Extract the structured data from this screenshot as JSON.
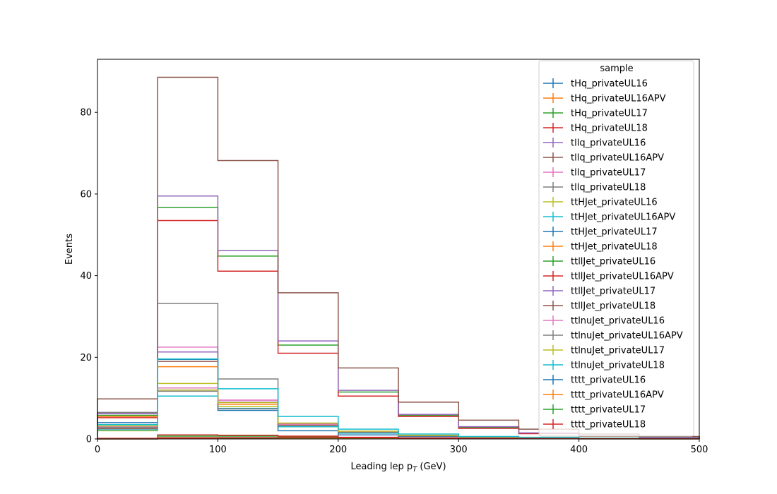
{
  "chart_data": {
    "type": "histogram-step",
    "xlabel": "Leading lep p",
    "xlabel_sub": "T",
    "xlabel_unit": " (GeV)",
    "ylabel": "Events",
    "xlim": [
      0,
      500
    ],
    "ylim": [
      0,
      93
    ],
    "x_ticks": [
      0,
      100,
      200,
      300,
      400,
      500
    ],
    "y_ticks": [
      0,
      20,
      40,
      60,
      80
    ],
    "bin_edges": [
      0,
      50,
      100,
      150,
      200,
      250,
      300,
      350,
      400,
      450,
      500
    ],
    "legend_title": "sample",
    "legend_placement": "upper-right",
    "series": [
      {
        "name": "tHq_privateUL16",
        "color": "#1f77b4",
        "values": [
          0.05,
          0.35,
          0.35,
          0.25,
          0.15,
          0.1,
          0.05,
          0.05,
          0.02,
          0.02
        ]
      },
      {
        "name": "tHq_privateUL16APV",
        "color": "#ff7f0e",
        "values": [
          0.05,
          0.3,
          0.3,
          0.2,
          0.15,
          0.1,
          0.05,
          0.04,
          0.02,
          0.02
        ]
      },
      {
        "name": "tHq_privateUL17",
        "color": "#2ca02c",
        "values": [
          0.1,
          0.7,
          0.7,
          0.5,
          0.3,
          0.2,
          0.1,
          0.08,
          0.05,
          0.04
        ]
      },
      {
        "name": "tHq_privateUL18",
        "color": "#d62728",
        "values": [
          0.15,
          1.0,
          0.9,
          0.7,
          0.4,
          0.25,
          0.15,
          0.1,
          0.06,
          0.05
        ]
      },
      {
        "name": "tllq_privateUL16",
        "color": "#9467bd",
        "values": [
          2.9,
          21.3,
          9.0,
          3.5,
          1.6,
          0.8,
          0.5,
          0.3,
          0.2,
          0.1
        ]
      },
      {
        "name": "tllq_privateUL16APV",
        "color": "#8c564b",
        "values": [
          2.5,
          19.0,
          8.0,
          3.2,
          1.5,
          0.7,
          0.4,
          0.25,
          0.15,
          0.1
        ]
      },
      {
        "name": "tllq_privateUL17",
        "color": "#e377c2",
        "values": [
          6.3,
          22.5,
          9.5,
          3.7,
          1.7,
          0.8,
          0.5,
          0.3,
          0.2,
          0.1
        ]
      },
      {
        "name": "tllq_privateUL18",
        "color": "#7f7f7f",
        "values": [
          6.5,
          33.2,
          14.7,
          3.8,
          1.8,
          0.9,
          0.5,
          0.3,
          0.2,
          0.1
        ]
      },
      {
        "name": "ttHJet_privateUL16",
        "color": "#bcbd22",
        "values": [
          2.0,
          12.0,
          8.0,
          3.0,
          1.5,
          0.8,
          0.5,
          0.3,
          0.2,
          0.1
        ]
      },
      {
        "name": "ttHJet_privateUL16APV",
        "color": "#17becf",
        "values": [
          2.2,
          10.5,
          7.5,
          3.0,
          1.4,
          0.7,
          0.4,
          0.3,
          0.2,
          0.1
        ]
      },
      {
        "name": "ttHJet_privateUL17",
        "color": "#1f77b4",
        "values": [
          4.0,
          19.5,
          7.0,
          2.0,
          1.0,
          0.6,
          0.4,
          0.3,
          0.2,
          0.1
        ]
      },
      {
        "name": "ttHJet_privateUL18",
        "color": "#ff7f0e",
        "values": [
          5.5,
          17.7,
          8.5,
          3.4,
          1.6,
          0.8,
          0.5,
          0.3,
          0.2,
          0.1
        ]
      },
      {
        "name": "ttllJet_privateUL16",
        "color": "#2ca02c",
        "values": [
          5.8,
          56.7,
          44.8,
          23.0,
          11.5,
          5.8,
          2.8,
          1.4,
          0.7,
          0.4
        ]
      },
      {
        "name": "ttllJet_privateUL16APV",
        "color": "#d62728",
        "values": [
          5.2,
          53.5,
          41.1,
          21.0,
          10.5,
          5.5,
          2.6,
          1.3,
          0.7,
          0.4
        ]
      },
      {
        "name": "ttllJet_privateUL17",
        "color": "#9467bd",
        "values": [
          6.2,
          59.5,
          46.2,
          24.0,
          11.9,
          6.0,
          3.0,
          1.5,
          0.8,
          0.4
        ]
      },
      {
        "name": "ttllJet_privateUL18",
        "color": "#8c564b",
        "values": [
          9.8,
          88.6,
          68.2,
          35.8,
          17.4,
          9.0,
          4.6,
          2.4,
          1.2,
          0.6
        ]
      },
      {
        "name": "ttlnuJet_privateUL16",
        "color": "#e377c2",
        "values": [
          3.0,
          12.5,
          9.5,
          3.6,
          1.8,
          0.9,
          0.5,
          0.3,
          0.2,
          0.1
        ]
      },
      {
        "name": "ttlnuJet_privateUL16APV",
        "color": "#7f7f7f",
        "values": [
          2.8,
          11.7,
          7.4,
          3.3,
          1.6,
          0.8,
          0.4,
          0.3,
          0.2,
          0.1
        ]
      },
      {
        "name": "ttlnuJet_privateUL17",
        "color": "#bcbd22",
        "values": [
          3.2,
          13.6,
          8.9,
          3.9,
          1.9,
          0.9,
          0.5,
          0.3,
          0.2,
          0.1
        ]
      },
      {
        "name": "ttlnuJet_privateUL18",
        "color": "#17becf",
        "values": [
          3.5,
          19.6,
          12.3,
          5.5,
          2.4,
          1.2,
          0.6,
          0.4,
          0.2,
          0.1
        ]
      },
      {
        "name": "tttt_privateUL16",
        "color": "#1f77b4",
        "values": [
          0.02,
          0.1,
          0.15,
          0.2,
          0.2,
          0.15,
          0.1,
          0.08,
          0.05,
          0.03
        ]
      },
      {
        "name": "tttt_privateUL16APV",
        "color": "#ff7f0e",
        "values": [
          0.02,
          0.1,
          0.15,
          0.2,
          0.2,
          0.15,
          0.1,
          0.08,
          0.05,
          0.03
        ]
      },
      {
        "name": "tttt_privateUL17",
        "color": "#2ca02c",
        "values": [
          0.03,
          0.15,
          0.2,
          0.25,
          0.25,
          0.2,
          0.12,
          0.1,
          0.06,
          0.04
        ]
      },
      {
        "name": "tttt_privateUL18",
        "color": "#d62728",
        "values": [
          0.03,
          0.2,
          0.25,
          0.3,
          0.3,
          0.22,
          0.15,
          0.1,
          0.07,
          0.05
        ]
      }
    ]
  }
}
